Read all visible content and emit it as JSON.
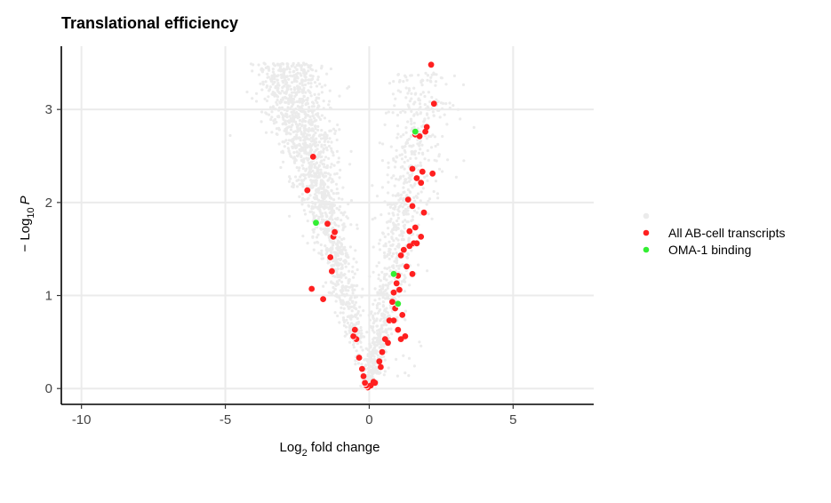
{
  "chart_data": {
    "type": "scatter",
    "title": "Translational efficiency",
    "xlabel": {
      "base": "Log",
      "sub": "2",
      "rest": " fold change"
    },
    "ylabel": {
      "prefix": "− Log",
      "sub": "10",
      "var": "P"
    },
    "xlim": [
      -10.7,
      7.8
    ],
    "ylim": [
      -0.17,
      3.68
    ],
    "xticks": [
      -10,
      -5,
      0,
      5
    ],
    "yticks": [
      0,
      1,
      2,
      3
    ],
    "grid": true,
    "legend_position": "right",
    "series": [
      {
        "name": "",
        "color": "#ebebeb",
        "points": []
      },
      {
        "name": "All AB-cell transcripts",
        "color": "#ff2020",
        "points": [
          [
            2.15,
            3.47
          ],
          [
            2.25,
            3.05
          ],
          [
            2.0,
            2.8
          ],
          [
            1.95,
            2.75
          ],
          [
            1.6,
            2.72
          ],
          [
            1.75,
            2.7
          ],
          [
            1.85,
            2.32
          ],
          [
            1.5,
            2.35
          ],
          [
            1.65,
            2.25
          ],
          [
            2.2,
            2.3
          ],
          [
            1.8,
            2.2
          ],
          [
            1.35,
            2.02
          ],
          [
            1.5,
            1.95
          ],
          [
            1.9,
            1.88
          ],
          [
            1.6,
            1.72
          ],
          [
            1.4,
            1.68
          ],
          [
            1.55,
            1.55
          ],
          [
            1.65,
            1.55
          ],
          [
            1.4,
            1.52
          ],
          [
            1.8,
            1.62
          ],
          [
            1.2,
            1.48
          ],
          [
            1.1,
            1.42
          ],
          [
            1.3,
            1.3
          ],
          [
            1.5,
            1.22
          ],
          [
            1.0,
            1.2
          ],
          [
            0.95,
            1.12
          ],
          [
            0.85,
            1.02
          ],
          [
            1.05,
            1.05
          ],
          [
            0.8,
            0.92
          ],
          [
            0.9,
            0.85
          ],
          [
            1.15,
            0.78
          ],
          [
            0.7,
            0.72
          ],
          [
            0.85,
            0.72
          ],
          [
            1.0,
            0.62
          ],
          [
            1.25,
            0.55
          ],
          [
            1.1,
            0.52
          ],
          [
            0.55,
            0.52
          ],
          [
            0.65,
            0.48
          ],
          [
            0.45,
            0.38
          ],
          [
            0.35,
            0.28
          ],
          [
            0.4,
            0.22
          ],
          [
            0.15,
            0.06
          ],
          [
            0.2,
            0.05
          ],
          [
            0.05,
            0.02
          ],
          [
            -0.05,
            0.0
          ],
          [
            -0.1,
            0.02
          ],
          [
            -0.15,
            0.05
          ],
          [
            -0.2,
            0.12
          ],
          [
            -0.25,
            0.2
          ],
          [
            -0.35,
            0.32
          ],
          [
            -0.45,
            0.52
          ],
          [
            -0.55,
            0.55
          ],
          [
            -0.5,
            0.62
          ],
          [
            -1.6,
            0.95
          ],
          [
            -2.0,
            1.06
          ],
          [
            -1.3,
            1.25
          ],
          [
            -1.35,
            1.4
          ],
          [
            -1.25,
            1.62
          ],
          [
            -1.2,
            1.67
          ],
          [
            -1.45,
            1.76
          ],
          [
            -2.15,
            2.12
          ],
          [
            -1.95,
            2.48
          ]
        ]
      },
      {
        "name": "OMA-1 binding",
        "color": "#33ee33",
        "points": [
          [
            1.6,
            2.75
          ],
          [
            -1.85,
            1.77
          ],
          [
            0.85,
            1.22
          ],
          [
            1.0,
            0.9
          ]
        ]
      }
    ]
  },
  "legend": {
    "items": [
      {
        "label": "",
        "color": "#ebebeb"
      },
      {
        "label": "All AB-cell transcripts",
        "color": "#ff2020"
      },
      {
        "label": "OMA-1 binding",
        "color": "#33ee33"
      }
    ]
  }
}
